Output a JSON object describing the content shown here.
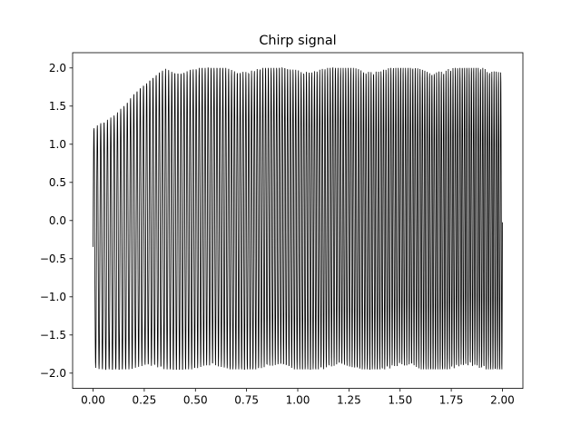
{
  "chart_data": {
    "type": "line",
    "title": "Chirp signal",
    "xlabel": "",
    "ylabel": "",
    "xlim": [
      -0.1,
      2.1
    ],
    "ylim": [
      -2.2,
      2.2
    ],
    "grid": false,
    "line_color": "#000000",
    "x_ticks": [
      0.0,
      0.25,
      0.5,
      0.75,
      1.0,
      1.25,
      1.5,
      1.75,
      2.0
    ],
    "x_tick_labels": [
      "0.00",
      "0.25",
      "0.50",
      "0.75",
      "1.00",
      "1.25",
      "1.50",
      "1.75",
      "2.00"
    ],
    "y_ticks": [
      -2.0,
      -1.5,
      -1.0,
      -0.5,
      0.0,
      0.5,
      1.0,
      1.5,
      2.0
    ],
    "y_tick_labels": [
      "−2.0",
      "−1.5",
      "−1.0",
      "−0.5",
      "0.0",
      "0.5",
      "1.0",
      "1.5",
      "2.0"
    ],
    "series": [
      {
        "x_range": [
          0.0,
          2.0
        ],
        "points": 2400,
        "description_of_shape": "dense oscillating chirp; envelope approx in [-2, 2], upper peaks near 1.2 at start rising to 2.0 after x~0.35"
      }
    ]
  }
}
